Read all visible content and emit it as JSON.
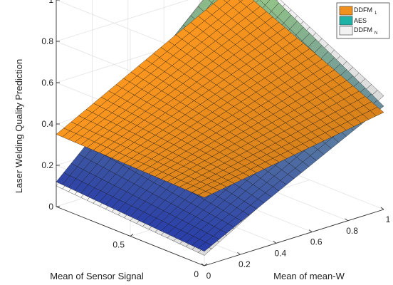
{
  "chart_data": {
    "type": "surface3d",
    "title": "",
    "xlabel": "Mean of Sensor Signal",
    "ylabel": "Mean of mean-W",
    "zlabel": "Laser Welding Quality Prediction",
    "xlim": [
      0,
      1
    ],
    "ylim": [
      0,
      1
    ],
    "zlim": [
      0,
      1
    ],
    "x_ticks": [
      "0",
      "0.5"
    ],
    "y_ticks": [
      "0",
      "0.2",
      "0.4",
      "0.6",
      "0.8",
      "1"
    ],
    "z_ticks": [
      "0",
      "0.2",
      "0.4",
      "0.6",
      "0.8",
      "1"
    ],
    "grid": true,
    "legend_position": "top-right",
    "series": [
      {
        "name": "DDFM",
        "name_sub": "1",
        "color": "#f0901e",
        "surface": {
          "z_at_x0_y0": 0.33,
          "z_at_x0_y1": 0.47,
          "z_at_x1_y0": 0.35,
          "z_at_x1_y1": 0.8
        }
      },
      {
        "name": "AES",
        "name_sub": "",
        "color": "#1fb3a8",
        "surface": {
          "z_at_x0_y0": 0.07,
          "z_at_x0_y1": 0.5,
          "z_at_x1_y0": 0.12,
          "z_at_x1_y1": 0.92
        }
      },
      {
        "name": "DDFM",
        "name_sub": "N",
        "color": "#f2f2f2",
        "surface": {
          "z_at_x0_y0": 0.05,
          "z_at_x0_y1": 0.55,
          "z_at_x1_y0": 0.1,
          "z_at_x1_y1": 0.93
        }
      }
    ]
  }
}
